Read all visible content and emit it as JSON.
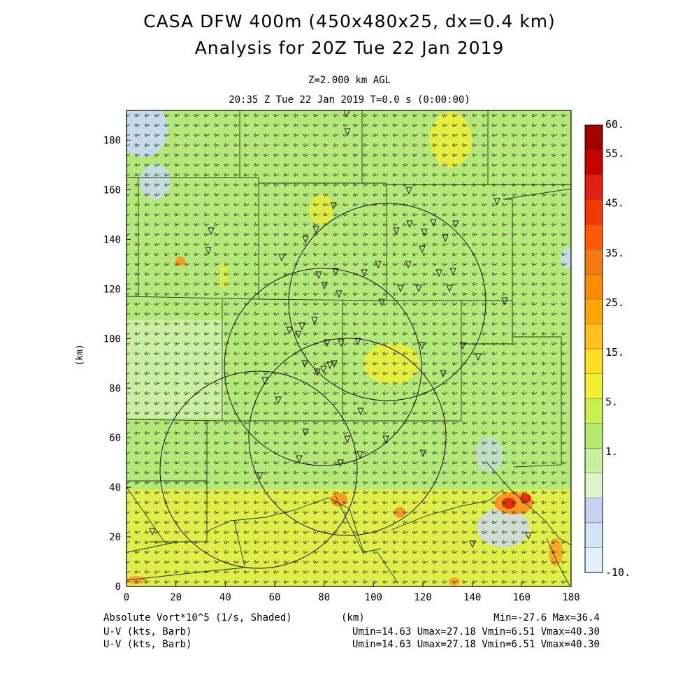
{
  "header": {
    "title_line1": "CASA DFW 400m (450x480x25, dx=0.4 km)",
    "title_line2": "Analysis for 20Z Tue 22 Jan 2019",
    "level": "Z=2.000 km AGL",
    "valid_time": "20:35 Z Tue 22 Jan 2019   T=0.0 s (0:00:00)"
  },
  "axes": {
    "x_ticks": [
      "0",
      "20",
      "40",
      "60",
      "80",
      "100",
      "120",
      "140",
      "160",
      "180"
    ],
    "y_ticks": [
      "0",
      "20",
      "40",
      "60",
      "80",
      "100",
      "120",
      "140",
      "160",
      "180"
    ],
    "x_label": "(km)",
    "y_label": "(km)"
  },
  "colorbar": {
    "labels": [
      "60.",
      "55.",
      "45.",
      "35.",
      "25.",
      "15.",
      "5.",
      "1.",
      "-10."
    ],
    "colors": [
      "#a50000",
      "#c80000",
      "#e02010",
      "#f03a00",
      "#ff5a00",
      "#f47a10",
      "#ff8c00",
      "#ffa500",
      "#ffc21a",
      "#ffe020",
      "#f0f030",
      "#c8f050",
      "#b4ec6e",
      "#c8f0a0",
      "#dcf5c8",
      "#c8d2f0",
      "#d2e4f8",
      "#e2f0fa"
    ]
  },
  "field": {
    "background": "#b4e878",
    "light_green": "#c8f0a0",
    "yellow_band": "#e8f040",
    "yellow_patch": "#f0f030",
    "blue_patch": "#c8d8f4",
    "orange": "#ff9a20",
    "red": "#e03010"
  },
  "footer": {
    "left1": "Absolute Vort*10^5 (1/s, Shaded)",
    "center1": "(km)",
    "right1": "Min=-27.6 Max=36.4",
    "left2": "U-V (kts, Barb)",
    "right2": "Umin=14.63 Umax=27.18 Vmin=6.51 Vmax=40.30",
    "left3": "U-V (kts, Barb)",
    "right3": "Umin=14.63 Umax=27.18 Vmin=6.51 Vmax=40.30"
  }
}
